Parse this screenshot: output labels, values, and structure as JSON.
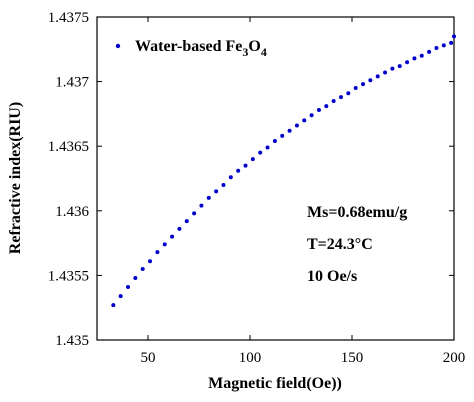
{
  "chart_data": {
    "type": "scatter",
    "xlabel": "Magnetic field(Oe))",
    "ylabel": "Refractive index(RIU)",
    "xlim": [
      25,
      200
    ],
    "ylim": [
      1.435,
      1.4375
    ],
    "xticks": [
      50,
      100,
      150,
      200
    ],
    "yticks": [
      1.435,
      1.4355,
      1.436,
      1.4365,
      1.437,
      1.4375
    ],
    "ytick_labels": [
      "1.435",
      "1.4355",
      "1.436",
      "1.4365",
      "1.437",
      "1.4375"
    ],
    "xtick_labels": [
      "50",
      "100",
      "150",
      "200"
    ],
    "legend": {
      "placement": "top-left",
      "entries": [
        {
          "prefix": "Water-based Fe",
          "sub1": "3",
          "mid": "O",
          "sub2": "4"
        }
      ]
    },
    "annotations": [
      "Ms=0.68emu/g",
      "T=24.3°C",
      "10 Oe/s"
    ],
    "marker_color": "#0000CC",
    "series": [
      {
        "name": "Water-based Fe3O4",
        "x": [
          33,
          36.6,
          40.2,
          43.8,
          47.4,
          51,
          54.6,
          58.2,
          61.8,
          65.4,
          69,
          72.6,
          76.2,
          79.8,
          83.4,
          87,
          90.6,
          94.2,
          97.8,
          101.4,
          105,
          108.6,
          112.2,
          115.8,
          119.4,
          123,
          126.6,
          130.2,
          133.8,
          137.4,
          141,
          144.6,
          148.2,
          151.8,
          155.4,
          159,
          162.6,
          166.2,
          169.8,
          173.4,
          177,
          180.6,
          184.2,
          187.8,
          191.4,
          195,
          198.6,
          200
        ],
        "y": [
          1.43527,
          1.43534,
          1.43541,
          1.43548,
          1.43555,
          1.43561,
          1.43568,
          1.43574,
          1.4358,
          1.43586,
          1.43592,
          1.43598,
          1.43604,
          1.4361,
          1.43615,
          1.4362,
          1.43626,
          1.43631,
          1.43635,
          1.4364,
          1.43645,
          1.43649,
          1.43654,
          1.43658,
          1.43662,
          1.43666,
          1.4367,
          1.43674,
          1.43678,
          1.43681,
          1.43685,
          1.43688,
          1.43691,
          1.43695,
          1.43698,
          1.43701,
          1.43704,
          1.43707,
          1.4371,
          1.43712,
          1.43715,
          1.43718,
          1.4372,
          1.43723,
          1.43726,
          1.43728,
          1.4373,
          1.43735
        ]
      }
    ]
  }
}
